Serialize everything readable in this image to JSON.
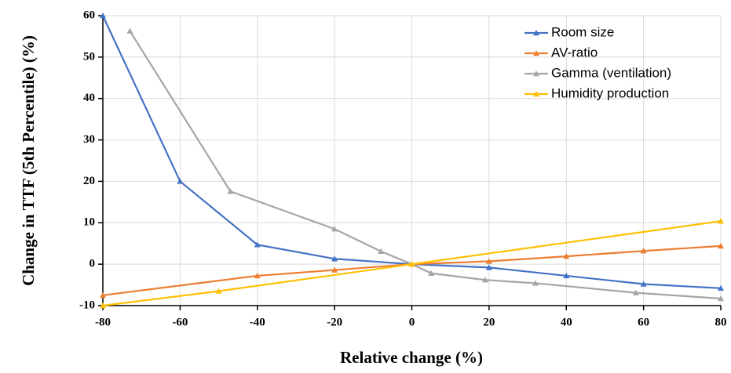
{
  "chart_data": {
    "type": "line",
    "x_label": "Relative change (%)",
    "y_label": "Change  in TTF (5th Percentile) (%)",
    "xlim": [
      -80,
      80
    ],
    "xticks": [
      -80,
      -60,
      -40,
      -20,
      0,
      20,
      40,
      60,
      80
    ],
    "ylim": [
      -10,
      60
    ],
    "yticks": [
      -10,
      0,
      10,
      20,
      30,
      40,
      50,
      60
    ],
    "grid": true,
    "legend": "upper right",
    "series": [
      {
        "name": "Room size",
        "color": "#4472c4",
        "x": [
          -80,
          -60,
          -40,
          -20,
          0,
          20,
          40,
          60,
          80
        ],
        "values": [
          60,
          20,
          4.7,
          1.3,
          0,
          -0.8,
          -2.8,
          -4.8,
          -5.8
        ]
      },
      {
        "name": "AV-ratio",
        "color": "#ed7d31",
        "x": [
          -80,
          -40,
          -20,
          0,
          20,
          40,
          60,
          80
        ],
        "values": [
          -7.5,
          -2.8,
          -1.4,
          0,
          0.7,
          1.9,
          3.2,
          4.4
        ]
      },
      {
        "name": "Gamma (ventilation)",
        "color": "#a5a5a5",
        "x": [
          -73,
          -47,
          -20,
          -8,
          0,
          5,
          19,
          32,
          58,
          80
        ],
        "values": [
          56.3,
          17.6,
          8.5,
          3.1,
          0,
          -2.2,
          -3.8,
          -4.6,
          -6.9,
          -8.3
        ]
      },
      {
        "name": "Humidity production",
        "color": "#ffc000",
        "x": [
          -80,
          -50,
          0,
          80
        ],
        "values": [
          -10,
          -6.5,
          0,
          10.4
        ]
      }
    ]
  }
}
